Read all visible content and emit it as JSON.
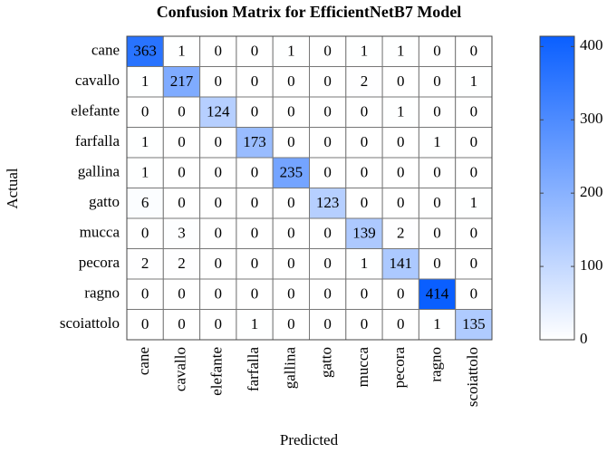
{
  "chart_data": {
    "type": "heatmap",
    "title": "Confusion Matrix for EfficientNetB7 Model",
    "x_label": "Predicted",
    "y_label": "Actual",
    "x_categories": [
      "cane",
      "cavallo",
      "elefante",
      "farfalla",
      "gallina",
      "gatto",
      "mucca",
      "pecora",
      "ragno",
      "scoiattolo"
    ],
    "y_categories": [
      "cane",
      "cavallo",
      "elefante",
      "farfalla",
      "gallina",
      "gatto",
      "mucca",
      "pecora",
      "ragno",
      "scoiattolo"
    ],
    "values": [
      [
        363,
        1,
        0,
        0,
        1,
        0,
        1,
        1,
        0,
        0
      ],
      [
        1,
        217,
        0,
        0,
        0,
        0,
        2,
        0,
        0,
        1
      ],
      [
        0,
        0,
        124,
        0,
        0,
        0,
        0,
        1,
        0,
        0
      ],
      [
        1,
        0,
        0,
        173,
        0,
        0,
        0,
        0,
        1,
        0
      ],
      [
        1,
        0,
        0,
        0,
        235,
        0,
        0,
        0,
        0,
        0
      ],
      [
        6,
        0,
        0,
        0,
        0,
        123,
        0,
        0,
        0,
        1
      ],
      [
        0,
        3,
        0,
        0,
        0,
        0,
        139,
        2,
        0,
        0
      ],
      [
        2,
        2,
        0,
        0,
        0,
        0,
        1,
        141,
        0,
        0
      ],
      [
        0,
        0,
        0,
        0,
        0,
        0,
        0,
        0,
        414,
        0
      ],
      [
        0,
        0,
        0,
        1,
        0,
        0,
        0,
        0,
        1,
        135
      ]
    ],
    "colormap": [
      "#ffffff",
      "#0a5fff"
    ],
    "zlim": [
      0,
      414
    ],
    "zticks": [
      0,
      100,
      200,
      300,
      400
    ]
  }
}
